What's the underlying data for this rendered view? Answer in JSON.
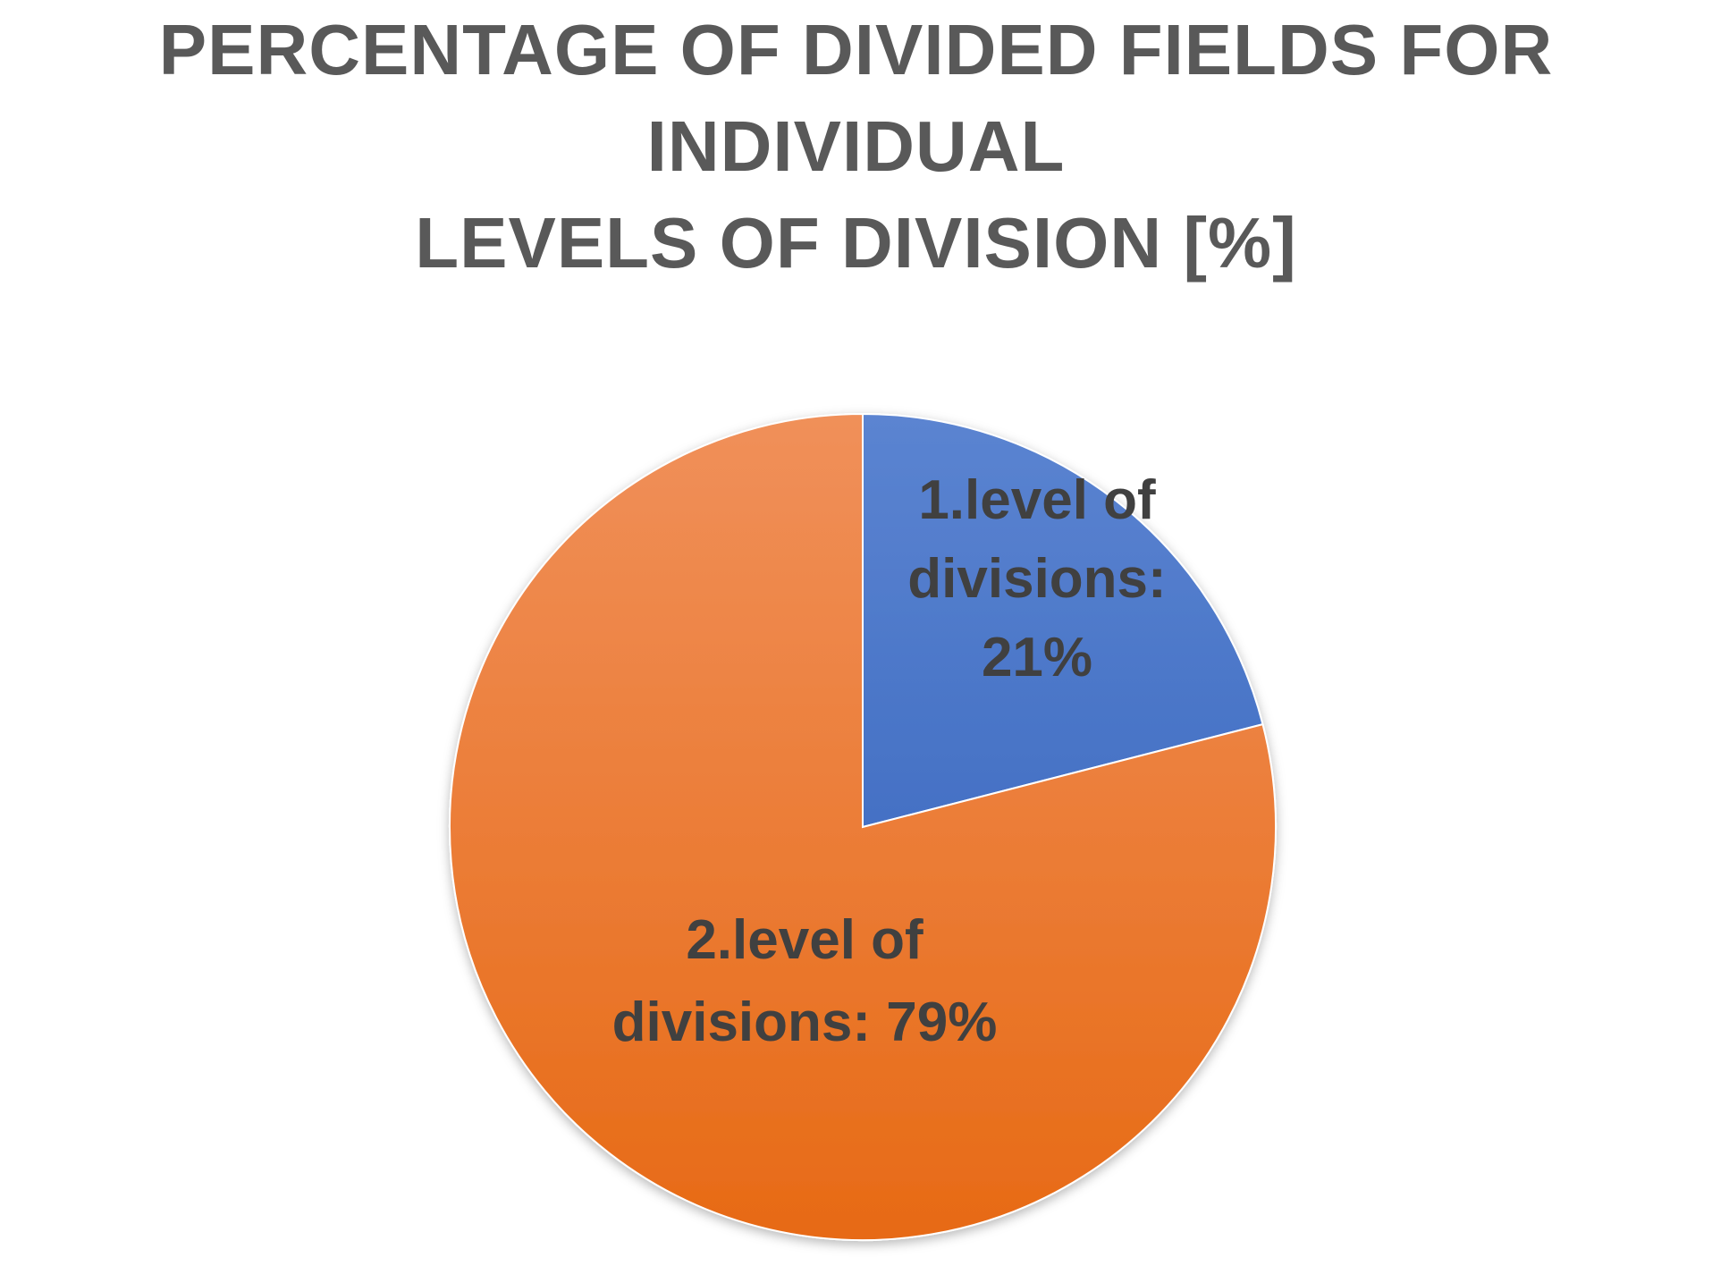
{
  "chart_data": {
    "type": "pie",
    "title_lines": [
      "PERCENTAGE OF DIVIDED FIELDS FOR INDIVIDUAL",
      "LEVELS OF DIVISION [%]"
    ],
    "slices": [
      {
        "name": "1.level of divisions",
        "value": 21,
        "label_lines": [
          "1.level of",
          "divisions:",
          "21%"
        ],
        "color_top": "#5B84D1",
        "color_bottom": "#2D5DB8"
      },
      {
        "name": "2.level of divisions",
        "value": 79,
        "label_lines": [
          "2.level of",
          "divisions: 79%"
        ],
        "color_top": "#F0905A",
        "color_bottom": "#E76A15"
      }
    ],
    "start_angle": "12 o'clock",
    "direction": "clockwise",
    "legend": "none"
  }
}
